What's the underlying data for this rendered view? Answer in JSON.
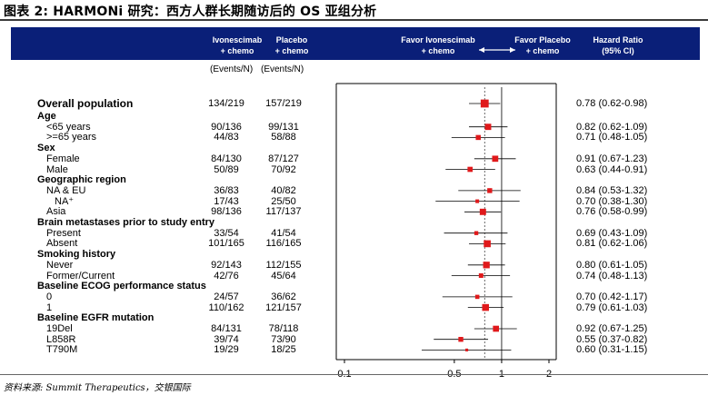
{
  "title": "图表 2: HARMONi 研究：西方人群长期随访后的 OS 亚组分析",
  "source": "资料来源: Summit Therapeutics，交银国际",
  "header": {
    "col1": "Ivonescimab\n+ chemo",
    "col2": "Placebo\n+ chemo",
    "favor_left": "Favor Ivonescimab\n+ chemo",
    "favor_right": "Favor Placebo\n+ chemo",
    "hr": "Hazard Ratio\n(95% CI)",
    "events1": "(Events/N)",
    "events2": "(Events/N)"
  },
  "colors": {
    "header_bg": "#0a1f78",
    "marker": "#e0191b",
    "ci_line": "#000000"
  },
  "chart_data": {
    "type": "forest",
    "x_scale": "log",
    "xlim": [
      0.1,
      2.2
    ],
    "x_ticks": [
      0.1,
      0.5,
      1,
      2
    ],
    "x_tick_labels": [
      "0.1",
      "0.5",
      "1",
      "2"
    ],
    "reference_hr": 0.78,
    "reference_line": 1,
    "rows": [
      {
        "label": "Overall population",
        "kind": "overall",
        "ivo": "134/219",
        "pbo": "157/219",
        "hr": 0.78,
        "lo": 0.62,
        "hi": 0.98,
        "hr_text": "0.78 (0.62-0.98)"
      },
      {
        "label": "Age",
        "kind": "header"
      },
      {
        "label": "<65 years",
        "kind": "sub",
        "ivo": "90/136",
        "pbo": "99/131",
        "hr": 0.82,
        "lo": 0.62,
        "hi": 1.09,
        "hr_text": "0.82 (0.62-1.09)"
      },
      {
        "label": ">=65 years",
        "kind": "sub",
        "ivo": "44/83",
        "pbo": "58/88",
        "hr": 0.71,
        "lo": 0.48,
        "hi": 1.05,
        "hr_text": "0.71 (0.48-1.05)"
      },
      {
        "label": "Sex",
        "kind": "header"
      },
      {
        "label": "Female",
        "kind": "sub",
        "ivo": "84/130",
        "pbo": "87/127",
        "hr": 0.91,
        "lo": 0.67,
        "hi": 1.23,
        "hr_text": "0.91 (0.67-1.23)"
      },
      {
        "label": "Male",
        "kind": "sub",
        "ivo": "50/89",
        "pbo": "70/92",
        "hr": 0.63,
        "lo": 0.44,
        "hi": 0.91,
        "hr_text": "0.63 (0.44-0.91)"
      },
      {
        "label": "Geographic region",
        "kind": "header"
      },
      {
        "label": "NA & EU",
        "kind": "sub",
        "ivo": "36/83",
        "pbo": "40/82",
        "hr": 0.84,
        "lo": 0.53,
        "hi": 1.32,
        "hr_text": "0.84 (0.53-1.32)"
      },
      {
        "label": "NA⁺",
        "kind": "subsub",
        "ivo": "17/43",
        "pbo": "25/50",
        "hr": 0.7,
        "lo": 0.38,
        "hi": 1.3,
        "hr_text": "0.70 (0.38-1.30)"
      },
      {
        "label": "Asia",
        "kind": "sub",
        "ivo": "98/136",
        "pbo": "117/137",
        "hr": 0.76,
        "lo": 0.58,
        "hi": 0.99,
        "hr_text": "0.76 (0.58-0.99)"
      },
      {
        "label": "Brain metastases prior to study entry",
        "kind": "header"
      },
      {
        "label": "Present",
        "kind": "sub",
        "ivo": "33/54",
        "pbo": "41/54",
        "hr": 0.69,
        "lo": 0.43,
        "hi": 1.09,
        "hr_text": "0.69 (0.43-1.09)"
      },
      {
        "label": "Absent",
        "kind": "sub",
        "ivo": "101/165",
        "pbo": "116/165",
        "hr": 0.81,
        "lo": 0.62,
        "hi": 1.06,
        "hr_text": "0.81 (0.62-1.06)"
      },
      {
        "label": "Smoking history",
        "kind": "header"
      },
      {
        "label": "Never",
        "kind": "sub",
        "ivo": "92/143",
        "pbo": "112/155",
        "hr": 0.8,
        "lo": 0.61,
        "hi": 1.05,
        "hr_text": "0.80 (0.61-1.05)"
      },
      {
        "label": "Former/Current",
        "kind": "sub",
        "ivo": "42/76",
        "pbo": "45/64",
        "hr": 0.74,
        "lo": 0.48,
        "hi": 1.13,
        "hr_text": "0.74 (0.48-1.13)"
      },
      {
        "label": "Baseline ECOG performance status",
        "kind": "header"
      },
      {
        "label": "0",
        "kind": "sub",
        "ivo": "24/57",
        "pbo": "36/62",
        "hr": 0.7,
        "lo": 0.42,
        "hi": 1.17,
        "hr_text": "0.70 (0.42-1.17)"
      },
      {
        "label": "1",
        "kind": "sub",
        "ivo": "110/162",
        "pbo": "121/157",
        "hr": 0.79,
        "lo": 0.61,
        "hi": 1.03,
        "hr_text": "0.79 (0.61-1.03)"
      },
      {
        "label": "Baseline EGFR mutation",
        "kind": "header"
      },
      {
        "label": "19Del",
        "kind": "sub",
        "ivo": "84/131",
        "pbo": "78/118",
        "hr": 0.92,
        "lo": 0.67,
        "hi": 1.25,
        "hr_text": "0.92 (0.67-1.25)"
      },
      {
        "label": "L858R",
        "kind": "sub",
        "ivo": "39/74",
        "pbo": "73/90",
        "hr": 0.55,
        "lo": 0.37,
        "hi": 0.82,
        "hr_text": "0.55 (0.37-0.82)"
      },
      {
        "label": "T790M",
        "kind": "sub",
        "ivo": "19/29",
        "pbo": "18/25",
        "hr": 0.6,
        "lo": 0.31,
        "hi": 1.15,
        "hr_text": "0.60 (0.31-1.15)"
      }
    ]
  }
}
